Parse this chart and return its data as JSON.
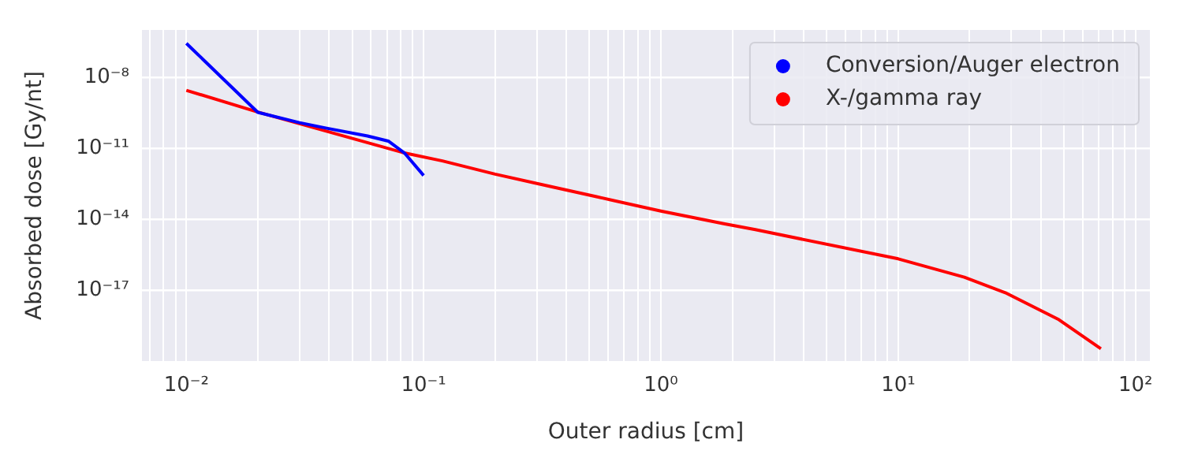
{
  "chart_data": {
    "type": "line",
    "xlabel": "Outer radius [cm]",
    "ylabel": "Absorbed dose [Gy/nt]",
    "log": "xy",
    "grid": true,
    "legend": "top right",
    "marker": "none",
    "line_style": "solid",
    "xlim": [
      0.0065,
      115
    ],
    "ylim": [
      1e-20,
      1e-06
    ],
    "xticks": [
      {
        "value": 0.007,
        "label": null
      },
      {
        "value": 0.008,
        "label": null
      },
      {
        "value": 0.009,
        "label": null
      },
      {
        "value": 0.01,
        "label": "10⁻²"
      },
      {
        "value": 0.02,
        "label": null
      },
      {
        "value": 0.03,
        "label": null
      },
      {
        "value": 0.04,
        "label": null
      },
      {
        "value": 0.05,
        "label": null
      },
      {
        "value": 0.06,
        "label": null
      },
      {
        "value": 0.07,
        "label": null
      },
      {
        "value": 0.08,
        "label": null
      },
      {
        "value": 0.09,
        "label": null
      },
      {
        "value": 0.1,
        "label": "10⁻¹"
      },
      {
        "value": 0.2,
        "label": null
      },
      {
        "value": 0.3,
        "label": null
      },
      {
        "value": 0.4,
        "label": null
      },
      {
        "value": 0.5,
        "label": null
      },
      {
        "value": 0.6,
        "label": null
      },
      {
        "value": 0.7,
        "label": null
      },
      {
        "value": 0.8,
        "label": null
      },
      {
        "value": 0.9,
        "label": null
      },
      {
        "value": 1,
        "label": "10⁰"
      },
      {
        "value": 2,
        "label": null
      },
      {
        "value": 3,
        "label": null
      },
      {
        "value": 4,
        "label": null
      },
      {
        "value": 5,
        "label": null
      },
      {
        "value": 6,
        "label": null
      },
      {
        "value": 7,
        "label": null
      },
      {
        "value": 8,
        "label": null
      },
      {
        "value": 9,
        "label": null
      },
      {
        "value": 10,
        "label": "10¹"
      },
      {
        "value": 20,
        "label": null
      },
      {
        "value": 30,
        "label": null
      },
      {
        "value": 40,
        "label": null
      },
      {
        "value": 50,
        "label": null
      },
      {
        "value": 60,
        "label": null
      },
      {
        "value": 70,
        "label": null
      },
      {
        "value": 80,
        "label": null
      },
      {
        "value": 90,
        "label": null
      },
      {
        "value": 100,
        "label": "10²"
      }
    ],
    "yticks": [
      {
        "value": 1e-08,
        "label": "10⁻⁸"
      },
      {
        "value": 1e-11,
        "label": "10⁻¹¹"
      },
      {
        "value": 1e-14,
        "label": "10⁻¹⁴"
      },
      {
        "value": 1e-17,
        "label": "10⁻¹⁷"
      }
    ],
    "series": [
      {
        "name": "Conversion/Auger electron",
        "color": "#0000ff",
        "x": [
          0.01,
          0.02,
          0.03,
          0.039,
          0.058,
          0.071,
          0.083,
          0.1
        ],
        "values": [
          2.7e-07,
          3.3e-10,
          1.2e-10,
          7e-11,
          3.3e-11,
          2e-11,
          6.3e-12,
          7e-13
        ]
      },
      {
        "name": "X-/gamma ray",
        "color": "#ff0000",
        "x": [
          0.01,
          0.02,
          0.083,
          0.12,
          0.2,
          0.33,
          0.54,
          1,
          1.84,
          2.5,
          10,
          19,
          28.6,
          47.6,
          71.5
        ],
        "values": [
          2.8e-09,
          3.4e-10,
          6.3e-12,
          2.9e-12,
          8e-13,
          2.6e-13,
          8.7e-14,
          2.2e-14,
          6.4e-15,
          3.6e-15,
          2.1e-16,
          3.5e-17,
          7.4e-18,
          5.6e-19,
          3.3e-20
        ]
      }
    ]
  }
}
